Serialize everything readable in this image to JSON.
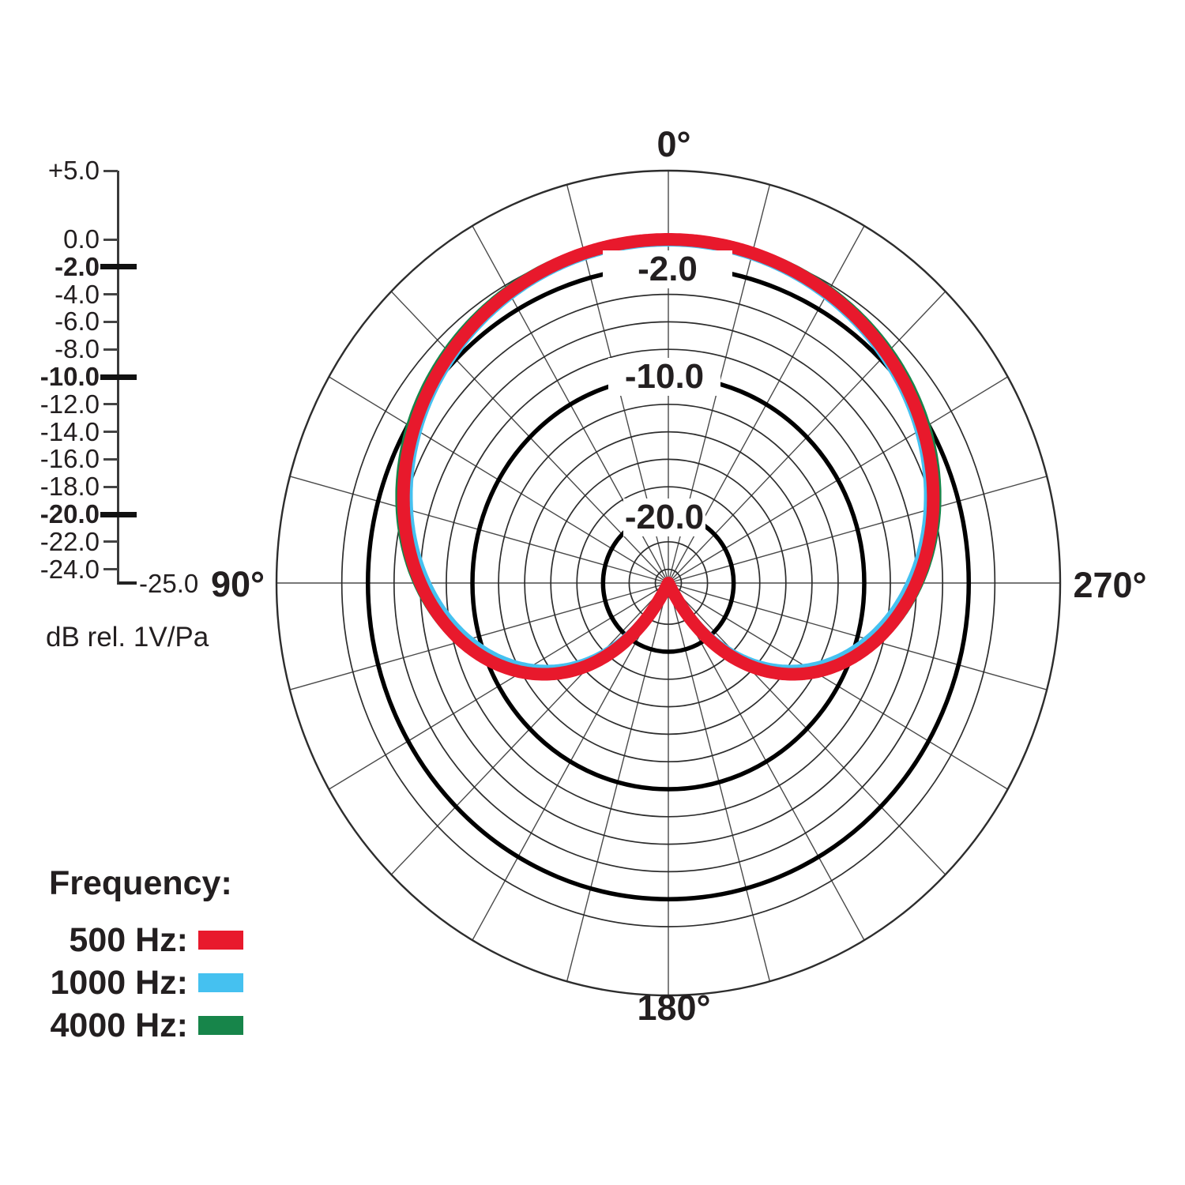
{
  "chart_data": {
    "type": "polar",
    "description": "Microphone polar pattern (cardioid directivity) at three frequencies",
    "angle_convention": "0 degrees at top (front); angles increase counterclockwise: 90 left, 180 bottom, 270 right",
    "spoke_step_deg": 15,
    "angle_labels": [
      {
        "text": "0°",
        "angle": 0
      },
      {
        "text": "90°",
        "angle": 90
      },
      {
        "text": "270°",
        "angle": 270
      },
      {
        "text": "180°",
        "angle": 180
      }
    ],
    "radial_axis": {
      "unit_label": "dB rel. 1V/Pa",
      "min_db": -25,
      "max_db": 5,
      "end_label": "-25.0",
      "ticks": [
        {
          "label": "+5.0",
          "db": 5,
          "bold": false
        },
        {
          "label": "0.0",
          "db": 0,
          "bold": false
        },
        {
          "label": "-2.0",
          "db": -2,
          "bold": true
        },
        {
          "label": "-4.0",
          "db": -4,
          "bold": false
        },
        {
          "label": "-6.0",
          "db": -6,
          "bold": false
        },
        {
          "label": "-8.0",
          "db": -8,
          "bold": false
        },
        {
          "label": "-10.0",
          "db": -10,
          "bold": true
        },
        {
          "label": "-12.0",
          "db": -12,
          "bold": false
        },
        {
          "label": "-14.0",
          "db": -14,
          "bold": false
        },
        {
          "label": "-16.0",
          "db": -16,
          "bold": false
        },
        {
          "label": "-18.0",
          "db": -18,
          "bold": false
        },
        {
          "label": "-20.0",
          "db": -20,
          "bold": true
        },
        {
          "label": "-22.0",
          "db": -22,
          "bold": false
        },
        {
          "label": "-24.0",
          "db": -24,
          "bold": false
        }
      ]
    },
    "grid_rings_db": [
      5,
      0,
      -2,
      -4,
      -6,
      -8,
      -10,
      -12,
      -14,
      -16,
      -18,
      -20,
      -22,
      -24
    ],
    "bold_rings_db": [
      -2,
      -10,
      -20
    ],
    "ring_labels": [
      {
        "text": "-2.0",
        "db": -2
      },
      {
        "text": "-10.0",
        "db": -10
      },
      {
        "text": "-20.0",
        "db": -20
      }
    ],
    "series": [
      {
        "name": "500 Hz",
        "color": "#e8192c",
        "pattern": "cardioid",
        "angles_deg": [
          0,
          15,
          30,
          45,
          60,
          75,
          90,
          105,
          120,
          135,
          150,
          165,
          180
        ],
        "response_db": [
          0.0,
          -0.1,
          -0.6,
          -1.4,
          -2.5,
          -4.0,
          -6.0,
          -8.6,
          -12.0,
          -16.7,
          -23.5,
          -25.0,
          -25.0
        ],
        "note": "values below -25 dB are clipped at the chart floor (center)"
      },
      {
        "name": "1000 Hz",
        "color": "#45c1f0",
        "pattern": "cardioid",
        "angles_deg": [
          0,
          15,
          30,
          45,
          60,
          75,
          90,
          105,
          120,
          135,
          150,
          165,
          180
        ],
        "response_db": [
          0.0,
          -0.1,
          -0.7,
          -1.5,
          -2.7,
          -4.3,
          -6.4,
          -9.1,
          -12.6,
          -17.4,
          -24.2,
          -25.0,
          -25.0
        ],
        "note": "slightly tighter than 500 Hz toward the rear"
      },
      {
        "name": "4000 Hz",
        "color": "#17854a",
        "pattern": "cardioid",
        "angles_deg": [
          0,
          15,
          30,
          45,
          60,
          75,
          90,
          105,
          120,
          135,
          150,
          165,
          180
        ],
        "response_db": [
          0.0,
          -0.1,
          -0.5,
          -1.2,
          -2.2,
          -3.8,
          -5.8,
          -8.5,
          -12.1,
          -16.9,
          -23.8,
          -25.0,
          -25.0
        ],
        "note": "slightly wider than 500 Hz at the sides, tighter at the rear"
      }
    ],
    "legend": {
      "title": "Frequency:",
      "entries": [
        {
          "label": "500 Hz:",
          "color": "#e8192c"
        },
        {
          "label": "1000 Hz:",
          "color": "#45c1f0"
        },
        {
          "label": "4000 Hz:",
          "color": "#17854a"
        }
      ]
    },
    "layout_hints": {
      "grid": "polar grid, rings every 2 dB from 0 to -24 plus outer +5 ring, bold rings at -2/-10/-20, spokes every 15 degrees",
      "legend_position": "bottom-left",
      "scale_position": "top-left vertical ruler"
    }
  }
}
